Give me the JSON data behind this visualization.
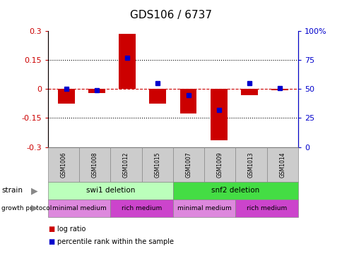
{
  "title": "GDS106 / 6737",
  "samples": [
    "GSM1006",
    "GSM1008",
    "GSM1012",
    "GSM1015",
    "GSM1007",
    "GSM1009",
    "GSM1013",
    "GSM1014"
  ],
  "log_ratios": [
    -0.075,
    -0.02,
    0.285,
    -0.075,
    -0.125,
    -0.265,
    -0.03,
    -0.005
  ],
  "percentile_ranks": [
    50,
    49,
    77,
    55,
    45,
    32,
    55,
    51
  ],
  "ylim_left": [
    -0.3,
    0.3
  ],
  "ylim_right": [
    0,
    100
  ],
  "yticks_left": [
    -0.3,
    -0.15,
    0,
    0.15,
    0.3
  ],
  "yticks_right": [
    0,
    25,
    50,
    75,
    100
  ],
  "ytick_labels_left": [
    "-0.3",
    "-0.15",
    "0",
    "0.15",
    "0.3"
  ],
  "ytick_labels_right": [
    "0",
    "25",
    "50",
    "75",
    "100%"
  ],
  "bar_color": "#cc0000",
  "dot_color": "#0000cc",
  "hline_color": "#cc0000",
  "grid_color": "#000000",
  "strain_groups": [
    {
      "label": "swi1 deletion",
      "start": 0,
      "end": 4,
      "color": "#bbffbb"
    },
    {
      "label": "snf2 deletion",
      "start": 4,
      "end": 8,
      "color": "#44dd44"
    }
  ],
  "growth_groups": [
    {
      "label": "minimal medium",
      "start": 0,
      "end": 2,
      "color": "#dd88dd"
    },
    {
      "label": "rich medium",
      "start": 2,
      "end": 4,
      "color": "#cc44cc"
    },
    {
      "label": "minimal medium",
      "start": 4,
      "end": 6,
      "color": "#dd88dd"
    },
    {
      "label": "rich medium",
      "start": 6,
      "end": 8,
      "color": "#cc44cc"
    }
  ],
  "legend_items": [
    {
      "label": "log ratio",
      "color": "#cc0000"
    },
    {
      "label": "percentile rank within the sample",
      "color": "#0000cc"
    }
  ],
  "bar_width": 0.55,
  "background_color": "#ffffff",
  "left_axis_color": "#cc0000",
  "right_axis_color": "#0000cc"
}
